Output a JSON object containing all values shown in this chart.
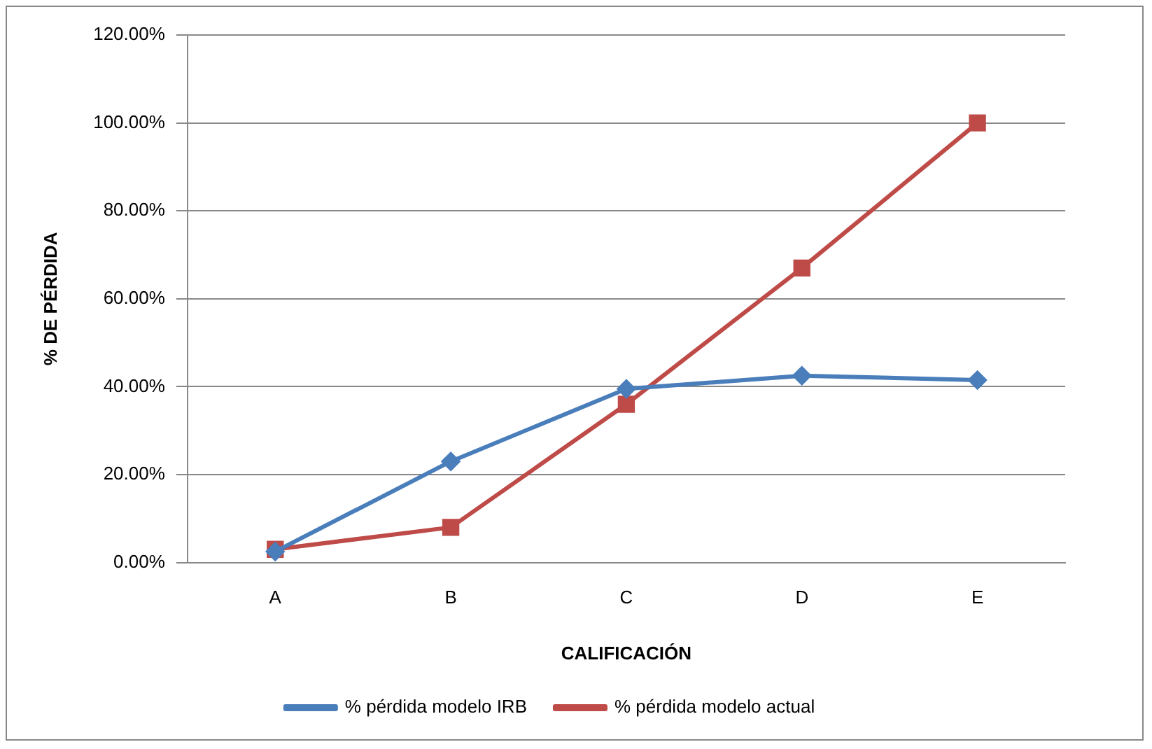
{
  "chart_data": {
    "type": "line",
    "xlabel": "CALIFICACIÓN",
    "ylabel": "% DE PÉRDIDA",
    "categories": [
      "A",
      "B",
      "C",
      "D",
      "E"
    ],
    "series": [
      {
        "name": "% pérdida modelo IRB",
        "color": "#4a7ebb",
        "marker": "diamond",
        "values": [
          2.5,
          23,
          39.5,
          42.5,
          41.5
        ]
      },
      {
        "name": "% pérdida modelo actual",
        "color": "#be4b48",
        "marker": "square",
        "values": [
          3,
          8,
          36,
          67,
          100
        ]
      }
    ],
    "ylim": [
      0,
      120
    ],
    "yticks": [
      {
        "value": 0,
        "label": "0.00%"
      },
      {
        "value": 20,
        "label": "20.00%"
      },
      {
        "value": 40,
        "label": "40.00%"
      },
      {
        "value": 60,
        "label": "60.00%"
      },
      {
        "value": 80,
        "label": "80.00%"
      },
      {
        "value": 100,
        "label": "100.00%"
      },
      {
        "value": 120,
        "label": "120.00%"
      }
    ],
    "grid": "y",
    "legend": "bottom",
    "line_style": "solid"
  }
}
